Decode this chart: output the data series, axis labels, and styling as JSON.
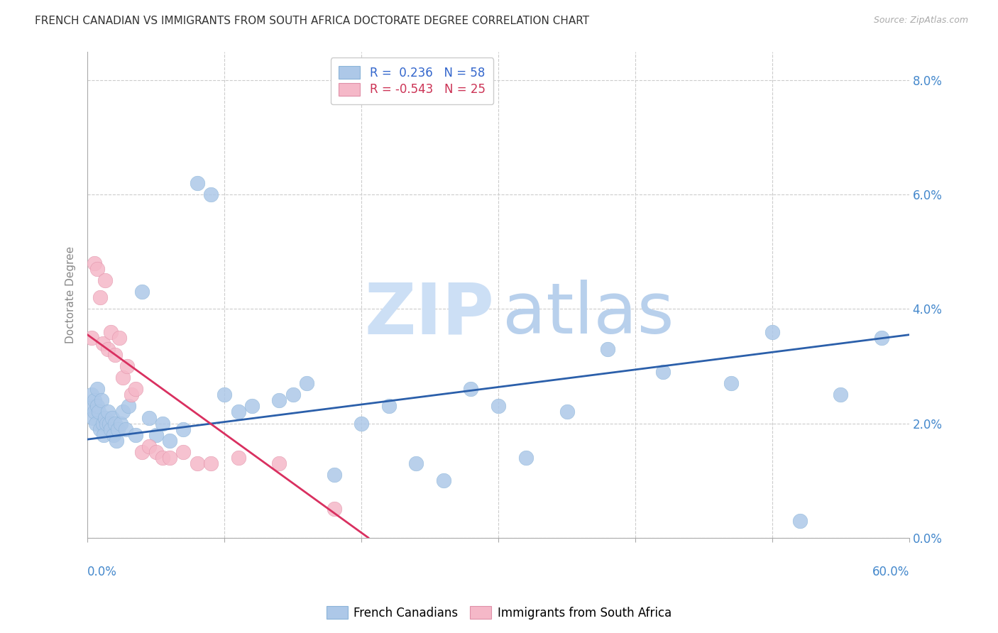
{
  "title": "FRENCH CANADIAN VS IMMIGRANTS FROM SOUTH AFRICA DOCTORATE DEGREE CORRELATION CHART",
  "source": "Source: ZipAtlas.com",
  "ylabel": "Doctorate Degree",
  "ytick_vals": [
    0.0,
    2.0,
    4.0,
    6.0,
    8.0
  ],
  "xlim": [
    0.0,
    60.0
  ],
  "ylim": [
    0.0,
    8.5
  ],
  "blue_color": "#adc8e8",
  "pink_color": "#f5b8c8",
  "blue_line_color": "#2b5faa",
  "pink_line_color": "#d93060",
  "legend_blue_label": "R =  0.236   N = 58",
  "legend_pink_label": "R = -0.543   N = 25",
  "watermark_zip_color": "#ccdff5",
  "watermark_atlas_color": "#b8d0ec",
  "blue_line_x0": 0.0,
  "blue_line_y0": 1.72,
  "blue_line_x1": 60.0,
  "blue_line_y1": 3.55,
  "pink_line_x0": 0.0,
  "pink_line_y0": 3.55,
  "pink_line_x1": 20.5,
  "pink_line_y1": 0.0,
  "blue_x": [
    0.2,
    0.3,
    0.4,
    0.5,
    0.5,
    0.6,
    0.7,
    0.7,
    0.8,
    0.9,
    1.0,
    1.1,
    1.2,
    1.3,
    1.4,
    1.5,
    1.6,
    1.7,
    1.8,
    1.9,
    2.0,
    2.1,
    2.2,
    2.4,
    2.6,
    2.8,
    3.0,
    3.5,
    4.0,
    4.5,
    5.0,
    5.5,
    6.0,
    7.0,
    8.0,
    9.0,
    10.0,
    11.0,
    12.0,
    14.0,
    15.0,
    16.0,
    18.0,
    20.0,
    22.0,
    24.0,
    26.0,
    28.0,
    30.0,
    32.0,
    35.0,
    38.0,
    42.0,
    47.0,
    50.0,
    52.0,
    55.0,
    58.0
  ],
  "blue_y": [
    2.3,
    2.5,
    2.1,
    2.4,
    2.2,
    2.0,
    2.3,
    2.6,
    2.2,
    1.9,
    2.4,
    2.0,
    1.8,
    2.1,
    2.0,
    2.2,
    2.0,
    1.9,
    2.1,
    1.8,
    2.0,
    1.7,
    1.9,
    2.0,
    2.2,
    1.9,
    2.3,
    1.8,
    4.3,
    2.1,
    1.8,
    2.0,
    1.7,
    1.9,
    6.2,
    6.0,
    2.5,
    2.2,
    2.3,
    2.4,
    2.5,
    2.7,
    1.1,
    2.0,
    2.3,
    1.3,
    1.0,
    2.6,
    2.3,
    1.4,
    2.2,
    3.3,
    2.9,
    2.7,
    3.6,
    0.3,
    2.5,
    3.5
  ],
  "pink_x": [
    0.3,
    0.5,
    0.7,
    0.9,
    1.1,
    1.3,
    1.5,
    1.7,
    2.0,
    2.3,
    2.6,
    2.9,
    3.2,
    3.5,
    4.0,
    4.5,
    5.0,
    5.5,
    6.0,
    7.0,
    8.0,
    9.0,
    11.0,
    14.0,
    18.0
  ],
  "pink_y": [
    3.5,
    4.8,
    4.7,
    4.2,
    3.4,
    4.5,
    3.3,
    3.6,
    3.2,
    3.5,
    2.8,
    3.0,
    2.5,
    2.6,
    1.5,
    1.6,
    1.5,
    1.4,
    1.4,
    1.5,
    1.3,
    1.3,
    1.4,
    1.3,
    0.5
  ]
}
